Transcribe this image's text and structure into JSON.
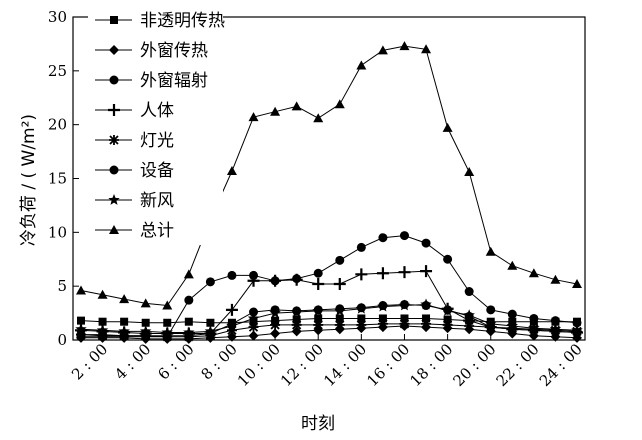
{
  "chart_data": {
    "type": "line",
    "xlabel": "时刻",
    "ylabel": "冷负荷 / ( W/m²)",
    "ylim": [
      0,
      30
    ],
    "yticks": [
      0,
      5,
      10,
      15,
      20,
      25,
      30
    ],
    "xlim": [
      1,
      24
    ],
    "xticks": [
      {
        "x": 2,
        "label": "2 : 00"
      },
      {
        "x": 4,
        "label": "4 : 00"
      },
      {
        "x": 6,
        "label": "6 : 00"
      },
      {
        "x": 8,
        "label": "8 : 00"
      },
      {
        "x": 10,
        "label": "10 : 00"
      },
      {
        "x": 12,
        "label": "12 : 00"
      },
      {
        "x": 14,
        "label": "14 : 00"
      },
      {
        "x": 16,
        "label": "16 : 00"
      },
      {
        "x": 18,
        "label": "18 : 00"
      },
      {
        "x": 20,
        "label": "20 : 00"
      },
      {
        "x": 22,
        "label": "22 : 00"
      },
      {
        "x": 24,
        "label": "24 : 00"
      }
    ],
    "x": [
      1,
      2,
      3,
      4,
      5,
      6,
      7,
      8,
      9,
      10,
      11,
      12,
      13,
      14,
      15,
      16,
      17,
      18,
      19,
      20,
      21,
      22,
      23,
      24
    ],
    "grid": false,
    "legend_position": "top-left",
    "series": [
      {
        "name": "非透明传热",
        "marker": "square",
        "values": [
          1.8,
          1.7,
          1.7,
          1.6,
          1.6,
          1.7,
          1.6,
          1.6,
          1.7,
          1.8,
          1.9,
          2.0,
          2.0,
          2.0,
          2.0,
          2.0,
          2.0,
          1.9,
          1.8,
          1.7,
          1.7,
          1.7,
          1.7,
          1.7
        ]
      },
      {
        "name": "外窗传热",
        "marker": "diamond",
        "values": [
          0.2,
          0.2,
          0.2,
          0.1,
          0.1,
          0.1,
          0.2,
          0.3,
          0.4,
          0.6,
          0.8,
          0.9,
          1.0,
          1.1,
          1.2,
          1.3,
          1.2,
          1.1,
          1.0,
          0.8,
          0.6,
          0.4,
          0.3,
          0.2
        ]
      },
      {
        "name": "外窗辐射",
        "marker": "circle",
        "values": [
          0.3,
          0.3,
          0.3,
          0.3,
          0.3,
          3.7,
          5.4,
          6.0,
          6.0,
          5.5,
          5.7,
          6.2,
          7.4,
          8.6,
          9.5,
          9.7,
          9.0,
          7.5,
          4.5,
          2.8,
          2.4,
          2.0,
          1.8,
          1.6
        ]
      },
      {
        "name": "人体",
        "marker": "plus",
        "values": [
          0.9,
          0.8,
          0.7,
          0.6,
          0.6,
          0.6,
          0.6,
          2.8,
          5.5,
          5.5,
          5.6,
          5.2,
          5.2,
          6.1,
          6.2,
          6.3,
          6.4,
          2.9,
          1.8,
          1.2,
          1.0,
          0.9,
          0.8,
          0.7
        ]
      },
      {
        "name": "灯光",
        "marker": "asterisk",
        "values": [
          0.5,
          0.4,
          0.4,
          0.4,
          0.3,
          0.3,
          0.4,
          0.9,
          1.2,
          1.4,
          1.4,
          1.4,
          1.4,
          1.4,
          1.5,
          1.5,
          1.5,
          1.4,
          1.3,
          1.2,
          1.1,
          1.0,
          0.9,
          0.8
        ]
      },
      {
        "name": "设备",
        "marker": "circle",
        "values": [
          0.5,
          0.5,
          0.4,
          0.4,
          0.4,
          0.4,
          0.6,
          1.5,
          2.6,
          2.8,
          2.7,
          2.8,
          2.9,
          3.0,
          3.2,
          3.3,
          3.2,
          2.8,
          2.2,
          1.2,
          1.0,
          0.9,
          0.8,
          0.7
        ]
      },
      {
        "name": "新风",
        "marker": "star",
        "values": [
          1.0,
          0.9,
          0.8,
          0.8,
          0.7,
          0.7,
          0.8,
          1.3,
          2.0,
          2.5,
          2.6,
          2.7,
          2.7,
          2.9,
          3.1,
          3.2,
          3.3,
          2.7,
          2.3,
          1.5,
          1.3,
          1.1,
          1.0,
          0.9
        ]
      },
      {
        "name": "总计",
        "marker": "triangle",
        "values": [
          4.6,
          4.2,
          3.8,
          3.4,
          3.2,
          6.1,
          11.2,
          15.7,
          20.7,
          21.2,
          21.7,
          20.6,
          21.9,
          25.5,
          26.9,
          27.3,
          27.0,
          19.7,
          15.6,
          8.2,
          6.9,
          6.2,
          5.6,
          5.2
        ]
      }
    ]
  }
}
